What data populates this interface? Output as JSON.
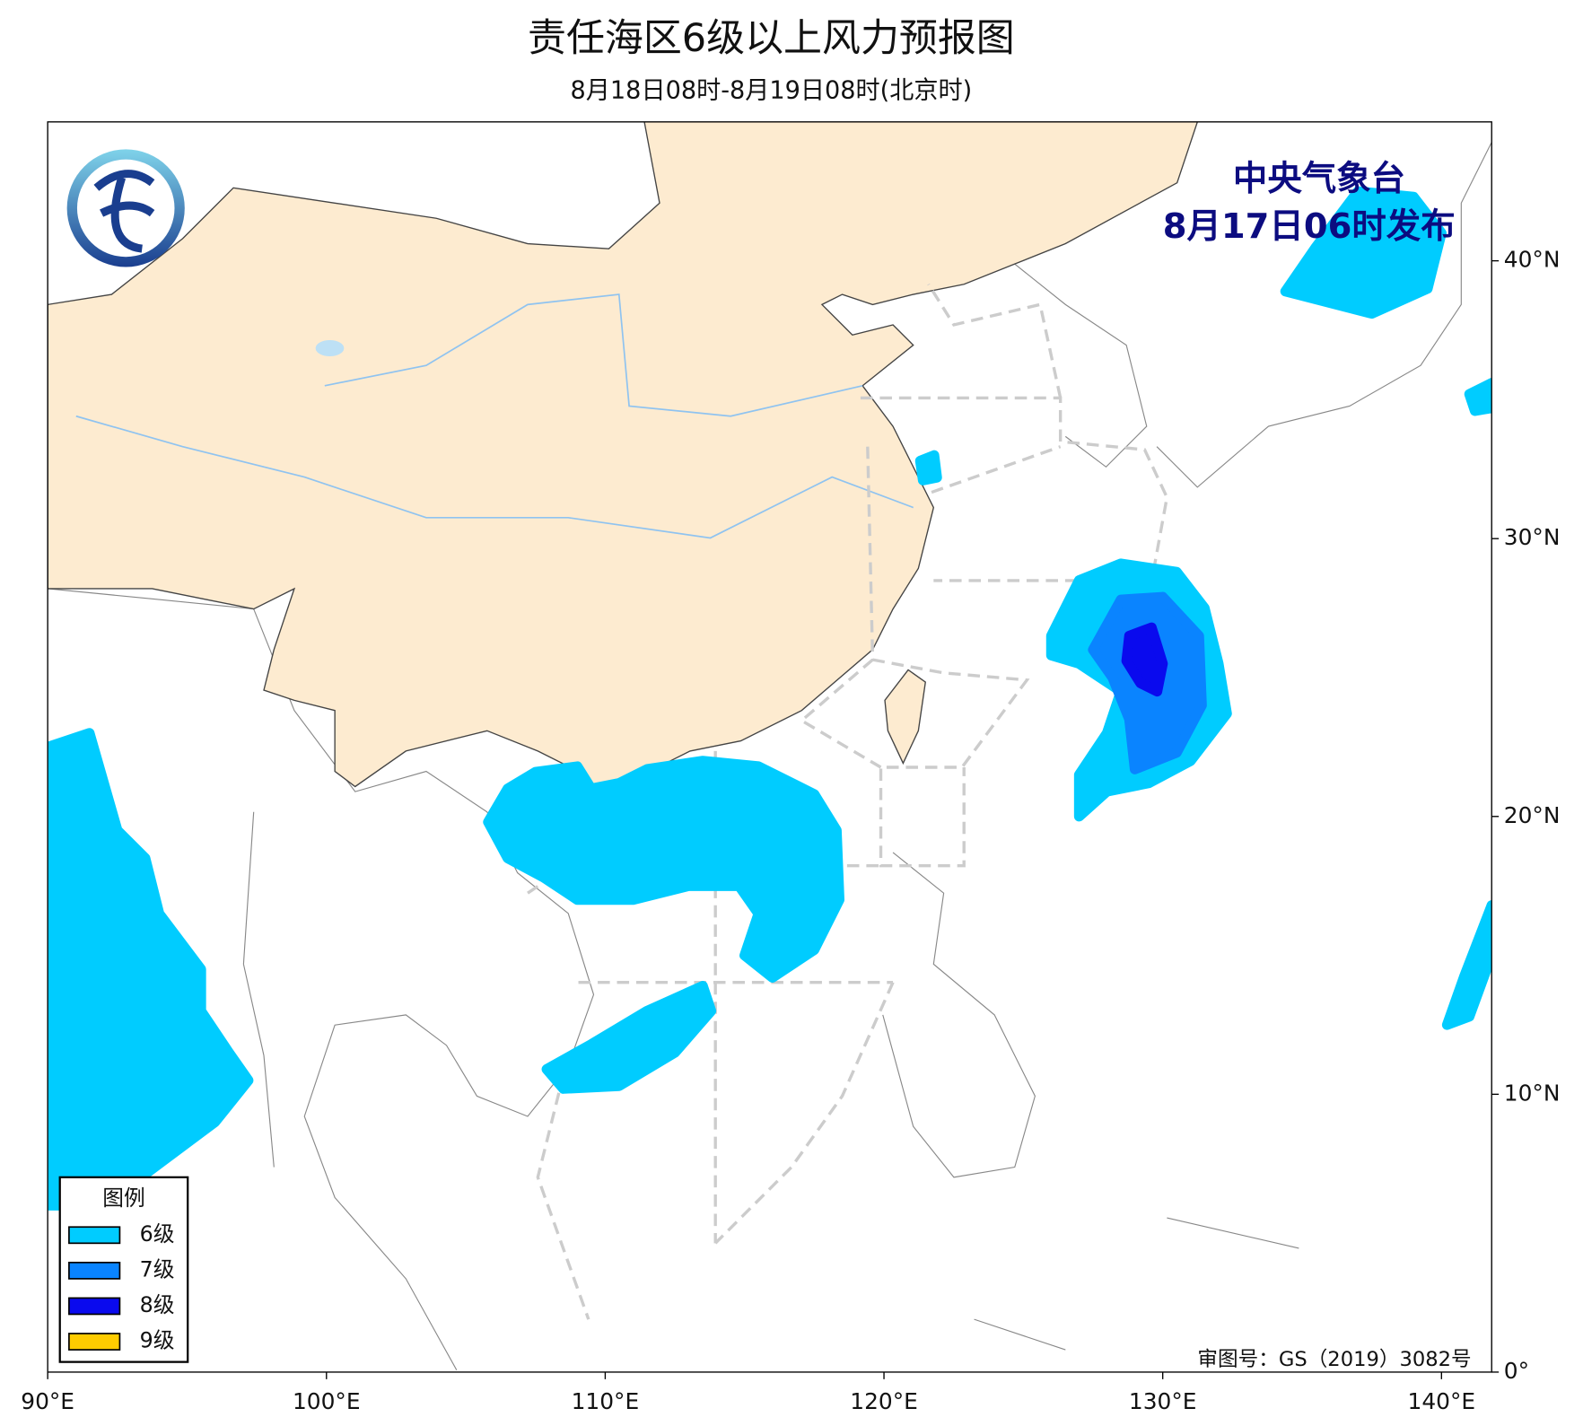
{
  "header": {
    "title": "责任海区6级以上风力预报图",
    "subtitle": "8月18日08时-8月19日08时(北京时)",
    "issuer": "中央气象台",
    "issue_time": "8月17日06时发布"
  },
  "chart_data": {
    "type": "map",
    "xlim": [
      90,
      141.8
    ],
    "ylim": [
      0,
      45
    ],
    "xticks": [
      {
        "value": 90,
        "label": "90°E"
      },
      {
        "value": 100,
        "label": "100°E"
      },
      {
        "value": 110,
        "label": "110°E"
      },
      {
        "value": 120,
        "label": "120°E"
      },
      {
        "value": 130,
        "label": "130°E"
      },
      {
        "value": 140,
        "label": "140°E"
      }
    ],
    "yticks": [
      {
        "value": 0,
        "label": "0°"
      },
      {
        "value": 10,
        "label": "10°N"
      },
      {
        "value": 20,
        "label": "20°N"
      },
      {
        "value": 30,
        "label": "30°N"
      },
      {
        "value": 40,
        "label": "40°N"
      }
    ],
    "legend": {
      "title": "图例",
      "items": [
        {
          "name": "6级",
          "color": "#00ccff"
        },
        {
          "name": "7级",
          "color": "#0a84ff"
        },
        {
          "name": "8级",
          "color": "#0a0aee"
        },
        {
          "name": "9级",
          "color": "#ffcc00"
        }
      ]
    },
    "regions": [
      {
        "color": "#00ccff",
        "points": [
          [
            126,
            26.5
          ],
          [
            127,
            28.5
          ],
          [
            128.5,
            29.1
          ],
          [
            130.5,
            28.8
          ],
          [
            131.5,
            27.5
          ],
          [
            132,
            25.5
          ],
          [
            132.3,
            23.7
          ],
          [
            131,
            22
          ],
          [
            129.5,
            21.2
          ],
          [
            128,
            20.9
          ],
          [
            127,
            20
          ],
          [
            127,
            21.5
          ],
          [
            128,
            23
          ],
          [
            128.5,
            24.5
          ],
          [
            127,
            25.5
          ],
          [
            126,
            25.8
          ]
        ]
      },
      {
        "color": "#0a84ff",
        "points": [
          [
            127.5,
            26
          ],
          [
            128.5,
            27.8
          ],
          [
            130,
            27.9
          ],
          [
            131.3,
            26.5
          ],
          [
            131.4,
            24
          ],
          [
            130.5,
            22.3
          ],
          [
            129,
            21.7
          ],
          [
            128.8,
            23.5
          ],
          [
            128.2,
            25
          ]
        ]
      },
      {
        "color": "#0a0aee",
        "points": [
          [
            128.8,
            26.5
          ],
          [
            129.6,
            26.8
          ],
          [
            130,
            25.5
          ],
          [
            129.8,
            24.5
          ],
          [
            129.2,
            24.8
          ],
          [
            128.7,
            25.6
          ]
        ]
      },
      {
        "color": "#00ccff",
        "points": [
          [
            105.8,
            19.8
          ],
          [
            106.5,
            21
          ],
          [
            107.5,
            21.6
          ],
          [
            109,
            21.8
          ],
          [
            109.5,
            21
          ],
          [
            110.5,
            21.2
          ],
          [
            111.5,
            21.7
          ],
          [
            113.5,
            22
          ],
          [
            115.5,
            21.8
          ],
          [
            117.5,
            20.8
          ],
          [
            118.3,
            19.5
          ],
          [
            118.4,
            17
          ],
          [
            117.5,
            15.2
          ],
          [
            116,
            14.2
          ],
          [
            115,
            15
          ],
          [
            115.5,
            16.5
          ],
          [
            114.8,
            17.5
          ],
          [
            113,
            17.5
          ],
          [
            111,
            17
          ],
          [
            109,
            17
          ],
          [
            107.8,
            17.8
          ],
          [
            106.5,
            18.5
          ]
        ]
      },
      {
        "color": "#00ccff",
        "points": [
          [
            107.9,
            10.9
          ],
          [
            109.5,
            11.8
          ],
          [
            111.5,
            13
          ],
          [
            113.5,
            13.9
          ],
          [
            113.8,
            13
          ],
          [
            112.5,
            11.5
          ],
          [
            110.5,
            10.3
          ],
          [
            108.5,
            10.2
          ]
        ]
      },
      {
        "color": "#00ccff",
        "points": [
          [
            90,
            22.5
          ],
          [
            91.5,
            23
          ],
          [
            92.5,
            19.5
          ],
          [
            93.5,
            18.5
          ],
          [
            94,
            16.5
          ],
          [
            95.5,
            14.5
          ],
          [
            95.5,
            13
          ],
          [
            96.5,
            11.5
          ],
          [
            97.2,
            10.5
          ],
          [
            96,
            9
          ],
          [
            94,
            7.5
          ],
          [
            92,
            6
          ],
          [
            90,
            6
          ]
        ]
      },
      {
        "color": "#00ccff",
        "points": [
          [
            134.4,
            38.9
          ],
          [
            135.5,
            40.5
          ],
          [
            137,
            42.5
          ],
          [
            139,
            42.3
          ],
          [
            140,
            41
          ],
          [
            139.5,
            39
          ],
          [
            137.5,
            38.1
          ]
        ]
      },
      {
        "color": "#00ccff",
        "points": [
          [
            140.2,
            12.5
          ],
          [
            140.8,
            14.2
          ],
          [
            141.8,
            16.8
          ],
          [
            141.8,
            15
          ],
          [
            141,
            12.8
          ]
        ]
      },
      {
        "color": "#00ccff",
        "points": [
          [
            141,
            35.2
          ],
          [
            141.8,
            35.6
          ],
          [
            141.8,
            34.7
          ],
          [
            141.2,
            34.6
          ]
        ]
      },
      {
        "color": "#00ccff",
        "points": [
          [
            121.3,
            32.8
          ],
          [
            121.8,
            33
          ],
          [
            121.9,
            32.2
          ],
          [
            121.4,
            32.1
          ]
        ]
      }
    ],
    "credit": "审图号：GS（2019）3082号"
  }
}
